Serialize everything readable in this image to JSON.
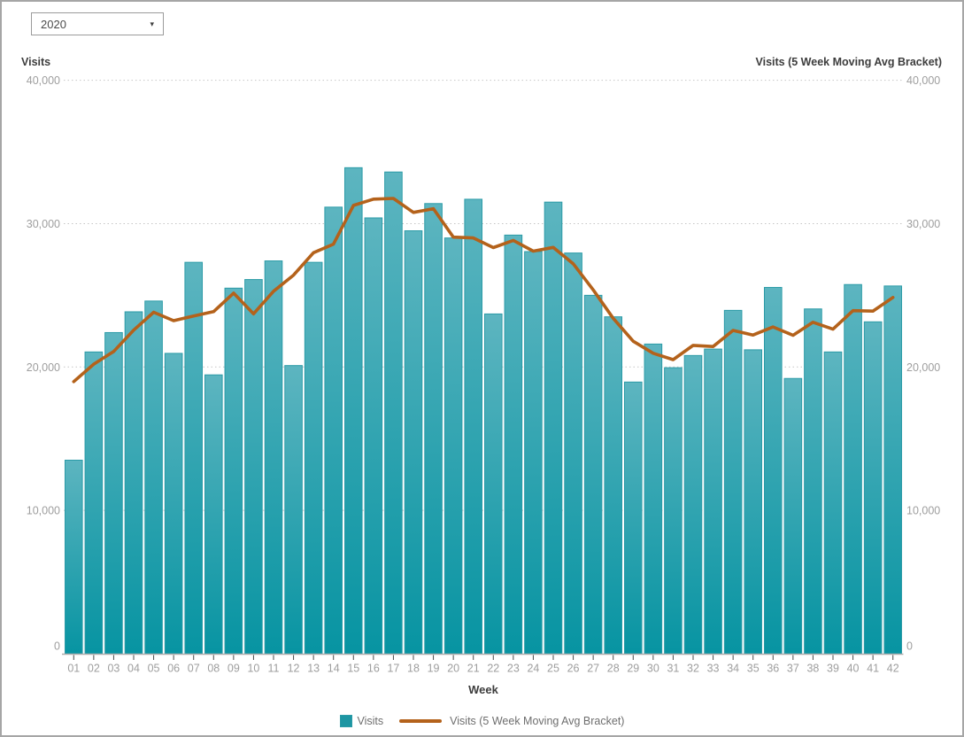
{
  "controls": {
    "year_dropdown": {
      "value": "2020"
    }
  },
  "axes": {
    "left_title": "Visits",
    "right_title": "Visits (5 Week Moving Avg Bracket)",
    "x_title": "Week"
  },
  "legend": {
    "items": [
      {
        "label": "Visits",
        "swatch": "square"
      },
      {
        "label": "Visits (5 Week Moving Avg Bracket)",
        "swatch": "line"
      }
    ]
  },
  "colors": {
    "bar_gradient_top": "#5db5c0",
    "bar_gradient_bottom": "#0794a2",
    "bar_border": "#2b9ba7",
    "bar_legend": "#1d96a3",
    "line": "#b4621b",
    "gridline": "#c6c6c6",
    "axis_line": "#adadad",
    "tick_mark": "#4c4c4c",
    "tick_label": "#9e9e9e",
    "axis_title": "#3d3d3d"
  },
  "chart_data": {
    "type": "bar",
    "subtype": "bar-with-line-overlay",
    "categories": [
      "01",
      "02",
      "03",
      "04",
      "05",
      "06",
      "07",
      "08",
      "09",
      "10",
      "11",
      "12",
      "13",
      "14",
      "15",
      "16",
      "17",
      "18",
      "19",
      "20",
      "21",
      "22",
      "23",
      "24",
      "25",
      "26",
      "27",
      "28",
      "29",
      "30",
      "31",
      "32",
      "33",
      "34",
      "35",
      "36",
      "37",
      "38",
      "39",
      "40",
      "41",
      "42"
    ],
    "series": [
      {
        "name": "Visits",
        "type": "bar",
        "axis": "left",
        "values": [
          13500,
          21050,
          22400,
          23850,
          24600,
          20950,
          27300,
          19450,
          25500,
          26100,
          27400,
          20100,
          27300,
          31150,
          33900,
          30400,
          33600,
          29500,
          31400,
          29000,
          31700,
          23700,
          29200,
          28050,
          31500,
          27950,
          25000,
          23500,
          18950,
          21600,
          19950,
          20800,
          21250,
          23950,
          21200,
          25550,
          19200,
          24050,
          21050,
          25750,
          23150,
          25650
        ]
      },
      {
        "name": "Visits (5 Week Moving Avg Bracket)",
        "type": "line",
        "axis": "right",
        "values": [
          18980,
          20200,
          21080,
          22570,
          23820,
          23230,
          23560,
          23860,
          25150,
          23710,
          25280,
          26410,
          27970,
          28570,
          31270,
          31710,
          31760,
          30780,
          31040,
          29060,
          29000,
          28330,
          28830,
          28080,
          28340,
          27200,
          25380,
          23400,
          21800,
          20960,
          20510,
          21510,
          21430,
          22550,
          22230,
          22790,
          22210,
          23120,
          22640,
          23930,
          23900,
          24850
        ]
      }
    ],
    "title": "",
    "xlabel": "Week",
    "ylabel_left": "Visits",
    "ylabel_right": "Visits (5 Week Moving Avg Bracket)",
    "ylim": [
      0,
      40000
    ],
    "y_ticks": [
      0,
      10000,
      20000,
      30000,
      40000
    ],
    "grid": "horizontal-dotted",
    "legend_position": "bottom"
  }
}
